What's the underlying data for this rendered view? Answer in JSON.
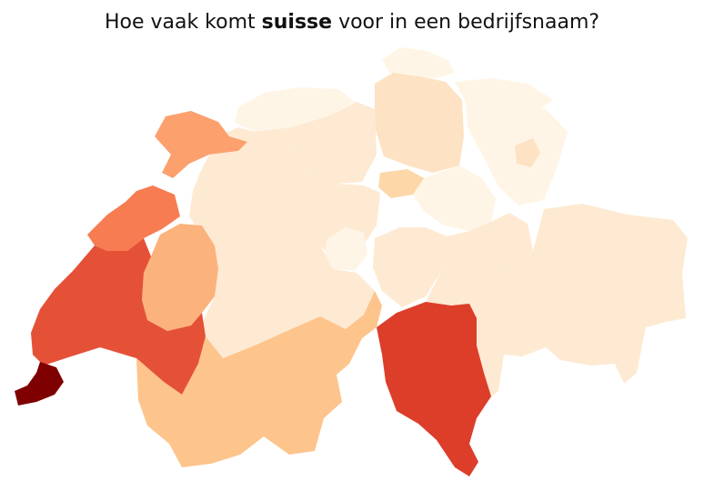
{
  "title": {
    "before": "Hoe vaak komt ",
    "keyword": "suisse",
    "after": " voor in een bedrijfsnaam?"
  },
  "colors": {
    "very_low": "#fff5e6",
    "low": "#feead2",
    "low_mid": "#fde2c3",
    "mid_light": "#fdd7a8",
    "mid": "#fdc48c",
    "mid_high": "#fcb27d",
    "high": "#fca06e",
    "higher": "#f77c52",
    "strong": "#e45137",
    "stronger": "#dc3e2a",
    "max": "#7f0000"
  },
  "regions": [
    {
      "name": "canton-bern",
      "level": "low"
    },
    {
      "name": "canton-zurich",
      "level": "low_mid"
    },
    {
      "name": "canton-graubunden",
      "level": "low"
    },
    {
      "name": "canton-valais",
      "level": "mid"
    },
    {
      "name": "canton-vaud",
      "level": "strong"
    },
    {
      "name": "canton-fribourg",
      "level": "mid_high"
    },
    {
      "name": "canton-neuchatel",
      "level": "higher"
    },
    {
      "name": "canton-jura",
      "level": "high"
    },
    {
      "name": "canton-geneva",
      "level": "max"
    },
    {
      "name": "canton-ticino",
      "level": "stronger"
    },
    {
      "name": "canton-lucerne",
      "level": "low"
    },
    {
      "name": "canton-zug",
      "level": "mid_light"
    },
    {
      "name": "canton-schaffhausen",
      "level": "very_low"
    },
    {
      "name": "canton-st-gallen",
      "level": "very_low"
    },
    {
      "name": "canton-aargau",
      "level": "low"
    },
    {
      "name": "canton-basel",
      "level": "very_low"
    },
    {
      "name": "canton-solothurn",
      "level": "low"
    },
    {
      "name": "canton-uri",
      "level": "low"
    },
    {
      "name": "canton-schwyz",
      "level": "very_low"
    },
    {
      "name": "canton-glarus",
      "level": "low"
    },
    {
      "name": "canton-obwalden",
      "level": "very_low"
    },
    {
      "name": "canton-appenzell",
      "level": "low_mid"
    },
    {
      "name": "canton-thurgau",
      "level": "very_low"
    }
  ]
}
